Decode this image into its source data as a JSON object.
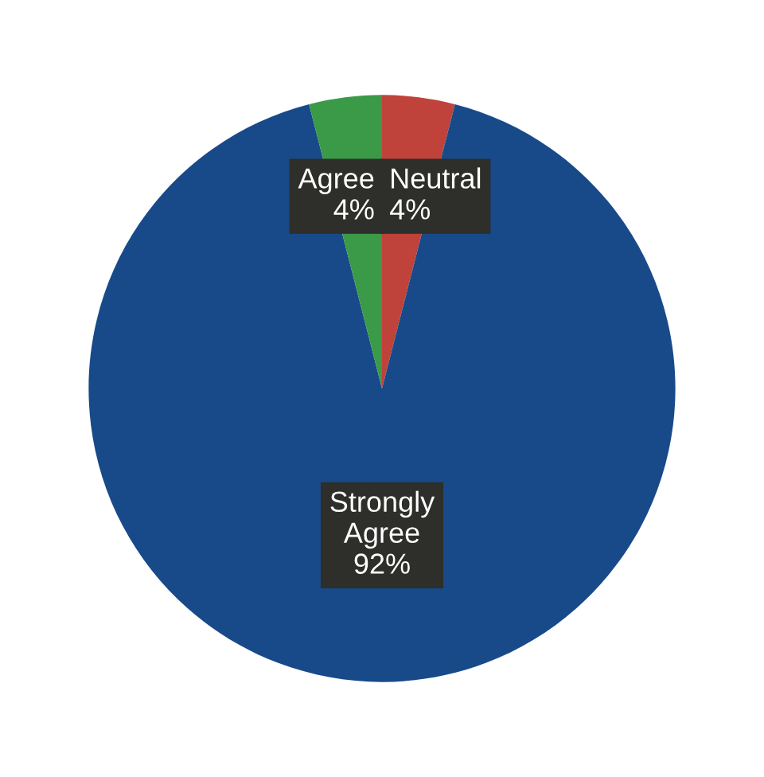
{
  "chart_data": {
    "type": "pie",
    "categories": [
      "Neutral",
      "Strongly Agree",
      "Agree"
    ],
    "values": [
      4,
      92,
      4
    ],
    "value_labels": [
      "4%",
      "92%",
      "4%"
    ],
    "colors": [
      "#c0433b",
      "#184a8a",
      "#3a9a48"
    ]
  }
}
